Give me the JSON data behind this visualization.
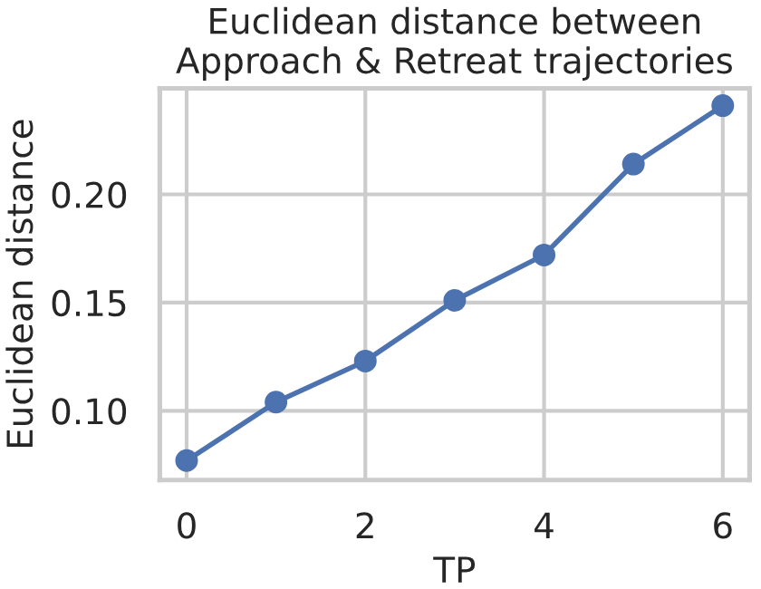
{
  "chart_data": {
    "type": "line",
    "title": "Euclidean distance between\nApproach & Retreat trajectories",
    "xlabel": "TP",
    "ylabel": "Euclidean distance",
    "x": [
      0,
      1,
      2,
      3,
      4,
      5,
      6
    ],
    "series": [
      {
        "color": "#4c72b0",
        "values": [
          0.077,
          0.104,
          0.123,
          0.151,
          0.172,
          0.214,
          0.241
        ]
      }
    ],
    "xlim": [
      -0.3,
      6.3
    ],
    "xticks": [
      0,
      2,
      4,
      6
    ],
    "ylim": [
      0.068,
      0.249
    ],
    "yticks": [
      {
        "value": 0.1,
        "label": "0.10"
      },
      {
        "value": 0.15,
        "label": "0.15"
      },
      {
        "value": 0.2,
        "label": "0.20"
      }
    ],
    "grid": true,
    "marker": "circle",
    "line_style": "solid"
  }
}
